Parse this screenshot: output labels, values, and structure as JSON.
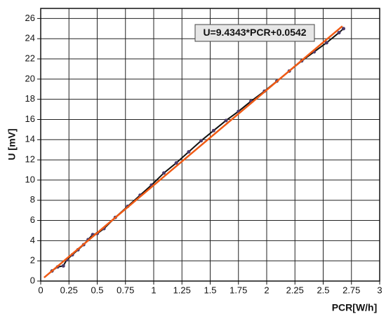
{
  "chart_data": {
    "type": "line",
    "x_label": "PCR[W/h]",
    "y_label": "U [mV]",
    "annotation": "U=9.4343*PCR+0.0542",
    "xlim": [
      0,
      3
    ],
    "ylim": [
      0,
      27
    ],
    "xticks": [
      0,
      0.25,
      0.5,
      0.75,
      1,
      1.25,
      1.5,
      1.75,
      2,
      2.25,
      2.5,
      2.75,
      3
    ],
    "yticks": [
      0,
      2,
      4,
      6,
      8,
      10,
      12,
      14,
      16,
      18,
      20,
      22,
      24,
      26
    ],
    "grid": true,
    "series": [
      {
        "color": "#111111",
        "marker_color": "#4a3a6a",
        "x": [
          0.1,
          0.15,
          0.2,
          0.23,
          0.28,
          0.33,
          0.38,
          0.42,
          0.46,
          0.5,
          0.56,
          0.66,
          0.77,
          0.88,
          0.98,
          1.09,
          1.2,
          1.31,
          1.42,
          1.53,
          1.64,
          1.75,
          1.86,
          1.98,
          2.09,
          2.2,
          2.31,
          2.42,
          2.53,
          2.64,
          2.68
        ],
        "values": [
          1.0,
          1.4,
          1.5,
          2.1,
          2.6,
          3.1,
          3.6,
          4.1,
          4.6,
          4.7,
          5.2,
          6.3,
          7.4,
          8.5,
          9.5,
          10.7,
          11.7,
          12.8,
          13.9,
          14.9,
          15.9,
          16.8,
          17.8,
          18.8,
          19.8,
          20.8,
          21.8,
          22.7,
          23.6,
          24.6,
          25.0
        ]
      },
      {
        "color": "#f05a14",
        "x": [
          0.03,
          2.67
        ],
        "values": [
          0.34,
          25.24
        ]
      }
    ]
  }
}
